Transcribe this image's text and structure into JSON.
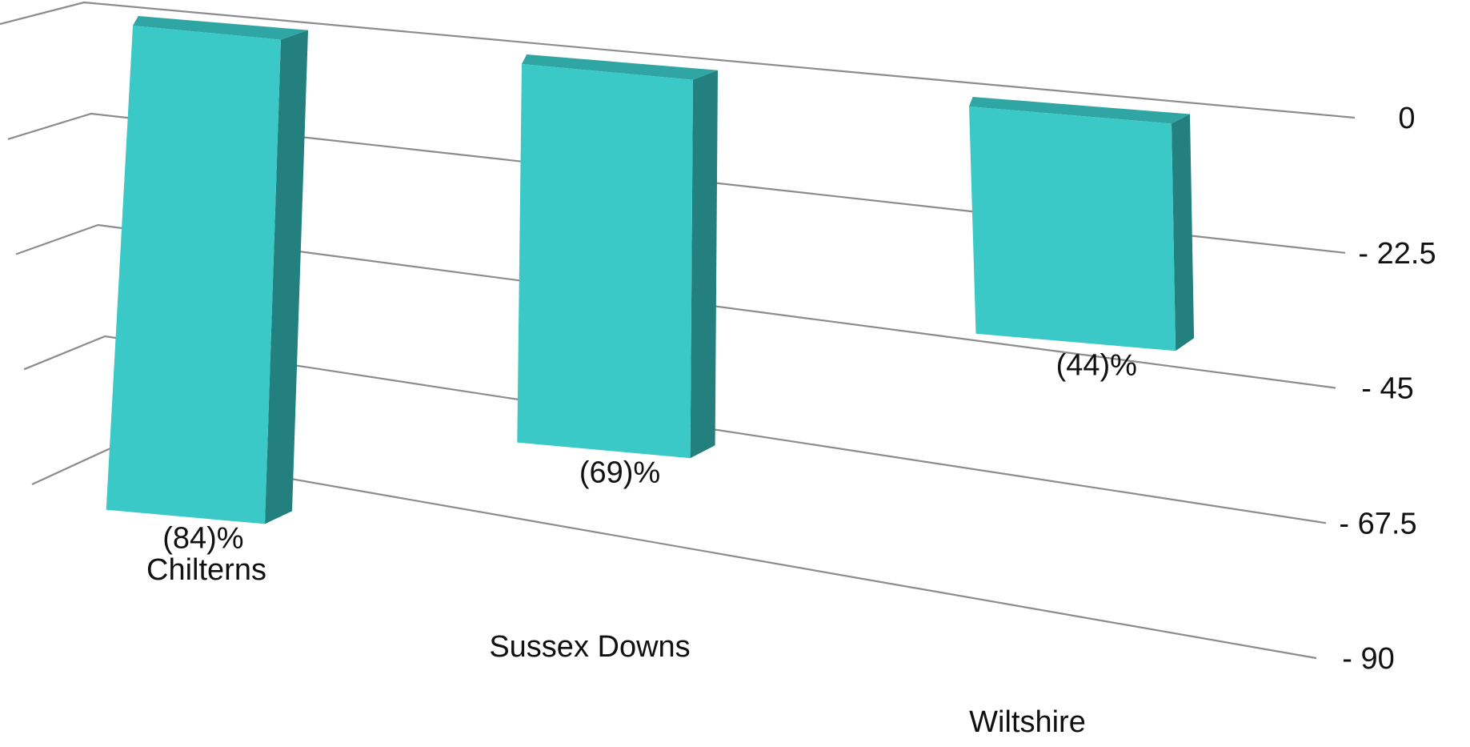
{
  "chart_data": {
    "type": "bar",
    "style": "3d-column",
    "categories": [
      "Chilterns",
      "Sussex Downs",
      "Wiltshire"
    ],
    "values": [
      -84,
      -69,
      -44
    ],
    "data_labels": [
      "(84)%",
      "(69)%",
      "(44)%"
    ],
    "y_ticks": [
      "0",
      "- 22.5",
      "- 45",
      "- 67.5",
      "- 90"
    ],
    "y_tick_values": [
      0,
      -22.5,
      -45,
      -67.5,
      -90
    ],
    "ylim": [
      -90,
      0
    ],
    "title": "",
    "xlabel": "",
    "ylabel": "",
    "grid": true,
    "legend": "none",
    "colors": {
      "bar_front": "#3AC9C7",
      "bar_side": "#23807E",
      "bar_top": "#2FA6A4",
      "grid": "#8C8C8C",
      "text": "#111111"
    }
  }
}
